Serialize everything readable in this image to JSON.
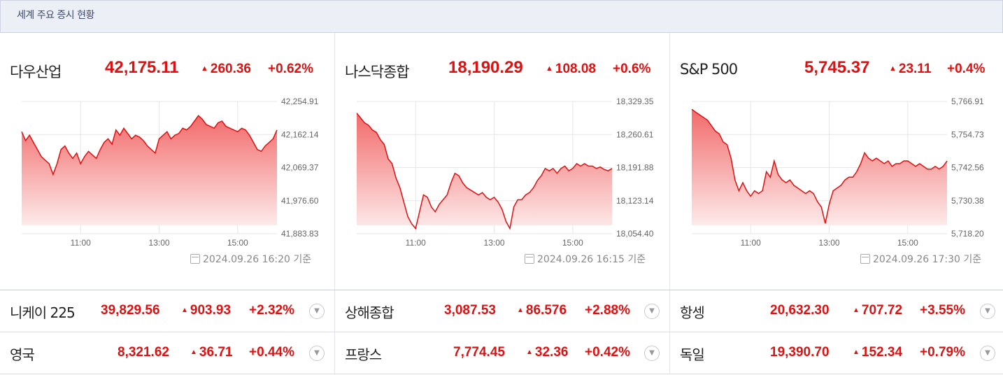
{
  "header": {
    "title": "세계 주요 증시 현황"
  },
  "panels": [
    {
      "name": "다우산업",
      "value": "42,175.11",
      "change": "260.36",
      "pct": "+0.62%",
      "stamp": "2024.09.26 16:20 기준"
    },
    {
      "name": "나스닥종합",
      "value": "18,190.29",
      "change": "108.08",
      "pct": "+0.6%",
      "stamp": "2024.09.26 16:15 기준"
    },
    {
      "name": "S&P 500",
      "value": "5,745.37",
      "change": "23.11",
      "pct": "+0.4%",
      "stamp": "2024.09.26 17:30 기준"
    }
  ],
  "rows": [
    {
      "name": "니케이 225",
      "value": "39,829.56",
      "change": "903.93",
      "pct": "+2.32%"
    },
    {
      "name": "상해종합",
      "value": "3,087.53",
      "change": "86.576",
      "pct": "+2.88%"
    },
    {
      "name": "항셍",
      "value": "20,632.30",
      "change": "707.72",
      "pct": "+3.55%"
    },
    {
      "name": "영국",
      "value": "8,321.62",
      "change": "36.71",
      "pct": "+0.44%"
    },
    {
      "name": "프랑스",
      "value": "7,774.45",
      "change": "32.36",
      "pct": "+0.42%"
    },
    {
      "name": "독일",
      "value": "19,390.70",
      "change": "152.34",
      "pct": "+0.79%"
    }
  ],
  "colors": {
    "up": "#dd1111",
    "area_top": "#f26a6a",
    "area_bottom": "#fdeaea",
    "header_bg": "#eceff6"
  },
  "chart_data": [
    {
      "type": "area",
      "title": "다우산업",
      "xticks": [
        "11:00",
        "13:00",
        "15:00"
      ],
      "yticks": [
        "42,254.91",
        "42,162.14",
        "42,069.37",
        "41,976.60",
        "41,883.83"
      ],
      "ylim": [
        41883.83,
        42254.91
      ],
      "xlim": [
        9.5,
        16.0
      ],
      "x": [
        9.5,
        9.6,
        9.7,
        9.8,
        9.9,
        10.0,
        10.1,
        10.2,
        10.3,
        10.4,
        10.5,
        10.6,
        10.7,
        10.8,
        10.9,
        11.0,
        11.1,
        11.2,
        11.3,
        11.4,
        11.5,
        11.6,
        11.7,
        11.8,
        11.9,
        12.0,
        12.1,
        12.2,
        12.3,
        12.4,
        12.5,
        12.6,
        12.7,
        12.8,
        12.9,
        13.0,
        13.1,
        13.2,
        13.3,
        13.4,
        13.5,
        13.6,
        13.7,
        13.8,
        13.9,
        14.0,
        14.1,
        14.2,
        14.3,
        14.4,
        14.5,
        14.6,
        14.7,
        14.8,
        14.9,
        15.0,
        15.1,
        15.2,
        15.3,
        15.4,
        15.5,
        15.6,
        15.7,
        15.8,
        15.9,
        16.0
      ],
      "values": [
        42170,
        42145,
        42160,
        42140,
        42120,
        42100,
        42090,
        42080,
        42050,
        42080,
        42120,
        42130,
        42110,
        42095,
        42110,
        42080,
        42100,
        42115,
        42105,
        42095,
        42120,
        42140,
        42150,
        42135,
        42175,
        42160,
        42180,
        42165,
        42150,
        42160,
        42155,
        42145,
        42130,
        42120,
        42110,
        42150,
        42160,
        42170,
        42150,
        42160,
        42165,
        42180,
        42175,
        42185,
        42200,
        42215,
        42205,
        42190,
        42185,
        42180,
        42195,
        42200,
        42185,
        42180,
        42175,
        42170,
        42180,
        42175,
        42160,
        42140,
        42120,
        42115,
        42130,
        42140,
        42150,
        42175
      ]
    },
    {
      "type": "area",
      "title": "나스닥종합",
      "xticks": [
        "11:00",
        "13:00",
        "15:00"
      ],
      "yticks": [
        "18,329.35",
        "18,260.61",
        "18,191.88",
        "18,123.14",
        "18,054.40"
      ],
      "ylim": [
        18054.4,
        18329.35
      ],
      "xlim": [
        9.5,
        16.0
      ],
      "x": [
        9.5,
        9.6,
        9.7,
        9.8,
        9.9,
        10.0,
        10.1,
        10.2,
        10.3,
        10.4,
        10.5,
        10.6,
        10.7,
        10.8,
        10.9,
        11.0,
        11.1,
        11.2,
        11.3,
        11.4,
        11.5,
        11.6,
        11.7,
        11.8,
        11.9,
        12.0,
        12.1,
        12.2,
        12.3,
        12.4,
        12.5,
        12.6,
        12.7,
        12.8,
        12.9,
        13.0,
        13.1,
        13.2,
        13.3,
        13.4,
        13.5,
        13.6,
        13.7,
        13.8,
        13.9,
        14.0,
        14.1,
        14.2,
        14.3,
        14.4,
        14.5,
        14.6,
        14.7,
        14.8,
        14.9,
        15.0,
        15.1,
        15.2,
        15.3,
        15.4,
        15.5,
        15.6,
        15.7,
        15.8,
        15.9,
        16.0
      ],
      "values": [
        18305,
        18295,
        18285,
        18280,
        18270,
        18265,
        18250,
        18240,
        18210,
        18200,
        18170,
        18150,
        18120,
        18090,
        18075,
        18065,
        18100,
        18135,
        18130,
        18110,
        18100,
        18115,
        18125,
        18135,
        18160,
        18180,
        18175,
        18160,
        18150,
        18145,
        18140,
        18135,
        18140,
        18130,
        18125,
        18130,
        18120,
        18105,
        18080,
        18065,
        18110,
        18125,
        18125,
        18135,
        18140,
        18150,
        18165,
        18175,
        18190,
        18185,
        18190,
        18180,
        18190,
        18195,
        18185,
        18190,
        18200,
        18195,
        18200,
        18195,
        18195,
        18190,
        18193,
        18188,
        18185,
        18190
      ]
    },
    {
      "type": "area",
      "title": "S&P 500",
      "xticks": [
        "11:00",
        "13:00",
        "15:00"
      ],
      "yticks": [
        "5,766.91",
        "5,754.73",
        "5,742.56",
        "5,730.38",
        "5,718.20"
      ],
      "ylim": [
        5718.2,
        5766.91
      ],
      "xlim": [
        9.5,
        16.0
      ],
      "x": [
        9.5,
        9.6,
        9.7,
        9.8,
        9.9,
        10.0,
        10.1,
        10.2,
        10.3,
        10.4,
        10.5,
        10.6,
        10.7,
        10.8,
        10.9,
        11.0,
        11.1,
        11.2,
        11.3,
        11.4,
        11.5,
        11.6,
        11.7,
        11.8,
        11.9,
        12.0,
        12.1,
        12.2,
        12.3,
        12.4,
        12.5,
        12.6,
        12.7,
        12.8,
        12.9,
        13.0,
        13.1,
        13.2,
        13.3,
        13.4,
        13.5,
        13.6,
        13.7,
        13.8,
        13.9,
        14.0,
        14.1,
        14.2,
        14.3,
        14.4,
        14.5,
        14.6,
        14.7,
        14.8,
        14.9,
        15.0,
        15.1,
        15.2,
        15.3,
        15.4,
        15.5,
        15.6,
        15.7,
        15.8,
        15.9,
        16.0
      ],
      "values": [
        5764,
        5763,
        5762,
        5761,
        5760,
        5758,
        5756,
        5755,
        5752,
        5751,
        5746,
        5738,
        5734,
        5737,
        5734,
        5732,
        5734,
        5733,
        5734,
        5741,
        5739,
        5745,
        5740,
        5738,
        5737,
        5738,
        5736,
        5735,
        5734,
        5733,
        5734,
        5733,
        5730,
        5728,
        5722,
        5729,
        5734,
        5735,
        5736,
        5738,
        5739,
        5739,
        5741,
        5744,
        5748,
        5746,
        5745,
        5746,
        5745,
        5744,
        5745,
        5743,
        5744,
        5744,
        5745,
        5745,
        5744,
        5743,
        5744,
        5743,
        5742,
        5742,
        5743,
        5742,
        5743,
        5745
      ]
    }
  ]
}
